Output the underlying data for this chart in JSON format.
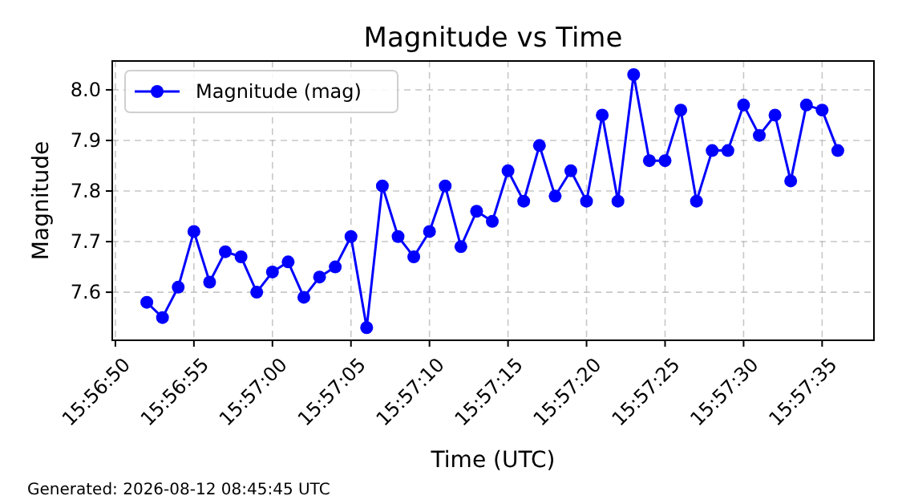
{
  "chart_data": {
    "type": "line",
    "title": "Magnitude vs Time",
    "xlabel": "Time (UTC)",
    "ylabel": "Magnitude",
    "annotations": [
      "Generated: 2026-08-12 08:45:45 UTC"
    ],
    "x": [
      57412,
      57413,
      57414,
      57415,
      57416,
      57417,
      57418,
      57419,
      57420,
      57421,
      57422,
      57423,
      57424,
      57425,
      57426,
      57427,
      57428,
      57429,
      57430,
      57431,
      57432,
      57433,
      57434,
      57435,
      57436,
      57437,
      57438,
      57439,
      57440,
      57441,
      57442,
      57443,
      57444,
      57445,
      57446,
      57447,
      57448,
      57449,
      57450,
      57451,
      57452,
      57453,
      57454,
      57455,
      57456
    ],
    "series": [
      {
        "name": "Magnitude (mag)",
        "color": "#0000ff",
        "values": [
          7.58,
          7.55,
          7.61,
          7.72,
          7.62,
          7.68,
          7.67,
          7.6,
          7.64,
          7.66,
          7.59,
          7.63,
          7.65,
          7.71,
          7.53,
          7.81,
          7.71,
          7.67,
          7.72,
          7.81,
          7.69,
          7.76,
          7.74,
          7.84,
          7.78,
          7.89,
          7.79,
          7.84,
          7.78,
          7.95,
          7.78,
          8.03,
          7.86,
          7.86,
          7.96,
          7.78,
          7.88,
          7.88,
          7.97,
          7.91,
          7.95,
          7.82,
          7.97,
          7.96,
          7.88
        ]
      }
    ],
    "xlim": [
      57409.8,
      57458.3
    ],
    "xticks": [
      {
        "value": 57410,
        "label": "15:56:50"
      },
      {
        "value": 57415,
        "label": "15:56:55"
      },
      {
        "value": 57420,
        "label": "15:57:00"
      },
      {
        "value": 57425,
        "label": "15:57:05"
      },
      {
        "value": 57430,
        "label": "15:57:10"
      },
      {
        "value": 57435,
        "label": "15:57:15"
      },
      {
        "value": 57440,
        "label": "15:57:20"
      },
      {
        "value": 57445,
        "label": "15:57:25"
      },
      {
        "value": 57450,
        "label": "15:57:30"
      },
      {
        "value": 57455,
        "label": "15:57:35"
      }
    ],
    "ylim": [
      7.505,
      8.057
    ],
    "yticks": [
      7.6,
      7.7,
      7.8,
      7.9,
      {
        "value": 8,
        "label": "8.0"
      }
    ],
    "grid": true,
    "legend": "top left",
    "marker": "circle",
    "line_style": "solid"
  }
}
